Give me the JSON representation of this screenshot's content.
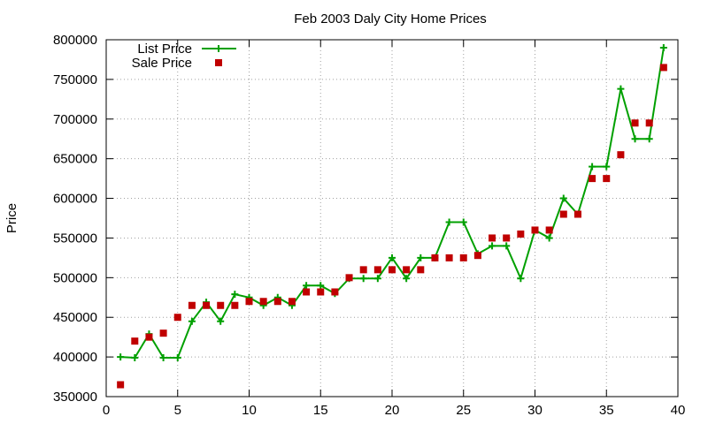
{
  "chart_data": {
    "type": "line",
    "title": "Feb 2003 Daly City Home Prices",
    "xlabel": "",
    "ylabel": "Price",
    "xlim": [
      0,
      40
    ],
    "ylim": [
      350000,
      800000
    ],
    "xticks": [
      "0",
      "5",
      "10",
      "15",
      "20",
      "25",
      "30",
      "35",
      "40"
    ],
    "yticks": [
      "350000",
      "400000",
      "450000",
      "500000",
      "550000",
      "600000",
      "650000",
      "700000",
      "750000",
      "800000"
    ],
    "grid": true,
    "legend_position": "top-left",
    "series": [
      {
        "name": "List Price",
        "style": "line-with-plus-markers",
        "color": "#00a000",
        "points": [
          [
            1,
            400000
          ],
          [
            2,
            399000
          ],
          [
            3,
            429000
          ],
          [
            4,
            399000
          ],
          [
            5,
            399000
          ],
          [
            6,
            445000
          ],
          [
            7,
            469000
          ],
          [
            8,
            445000
          ],
          [
            9,
            479000
          ],
          [
            10,
            475000
          ],
          [
            11,
            465000
          ],
          [
            12,
            475000
          ],
          [
            13,
            465000
          ],
          [
            14,
            490000
          ],
          [
            15,
            490000
          ],
          [
            16,
            480000
          ],
          [
            17,
            499000
          ],
          [
            18,
            499000
          ],
          [
            19,
            499000
          ],
          [
            20,
            525000
          ],
          [
            21,
            499000
          ],
          [
            22,
            525000
          ],
          [
            23,
            525000
          ],
          [
            24,
            570000
          ],
          [
            25,
            570000
          ],
          [
            26,
            530000
          ],
          [
            27,
            540000
          ],
          [
            28,
            540000
          ],
          [
            29,
            499000
          ],
          [
            30,
            560000
          ],
          [
            31,
            550000
          ],
          [
            32,
            600000
          ],
          [
            33,
            580000
          ],
          [
            34,
            640000
          ],
          [
            35,
            640000
          ],
          [
            36,
            738000
          ],
          [
            37,
            675000
          ],
          [
            38,
            675000
          ],
          [
            39,
            790000
          ]
        ]
      },
      {
        "name": "Sale Price",
        "style": "square-markers",
        "color": "#c00000",
        "points": [
          [
            1,
            365000
          ],
          [
            2,
            420000
          ],
          [
            3,
            425000
          ],
          [
            4,
            430000
          ],
          [
            5,
            450000
          ],
          [
            6,
            465000
          ],
          [
            7,
            465000
          ],
          [
            8,
            465000
          ],
          [
            9,
            465000
          ],
          [
            10,
            470000
          ],
          [
            11,
            470000
          ],
          [
            12,
            470000
          ],
          [
            13,
            470000
          ],
          [
            14,
            482000
          ],
          [
            15,
            482000
          ],
          [
            16,
            482000
          ],
          [
            17,
            500000
          ],
          [
            18,
            510000
          ],
          [
            19,
            510000
          ],
          [
            20,
            510000
          ],
          [
            21,
            510000
          ],
          [
            22,
            510000
          ],
          [
            23,
            525000
          ],
          [
            24,
            525000
          ],
          [
            25,
            525000
          ],
          [
            26,
            528000
          ],
          [
            27,
            550000
          ],
          [
            28,
            550000
          ],
          [
            29,
            555000
          ],
          [
            30,
            560000
          ],
          [
            31,
            560000
          ],
          [
            32,
            580000
          ],
          [
            33,
            580000
          ],
          [
            34,
            625000
          ],
          [
            35,
            625000
          ],
          [
            36,
            655000
          ],
          [
            37,
            695000
          ],
          [
            38,
            695000
          ],
          [
            39,
            765000
          ]
        ]
      }
    ]
  }
}
